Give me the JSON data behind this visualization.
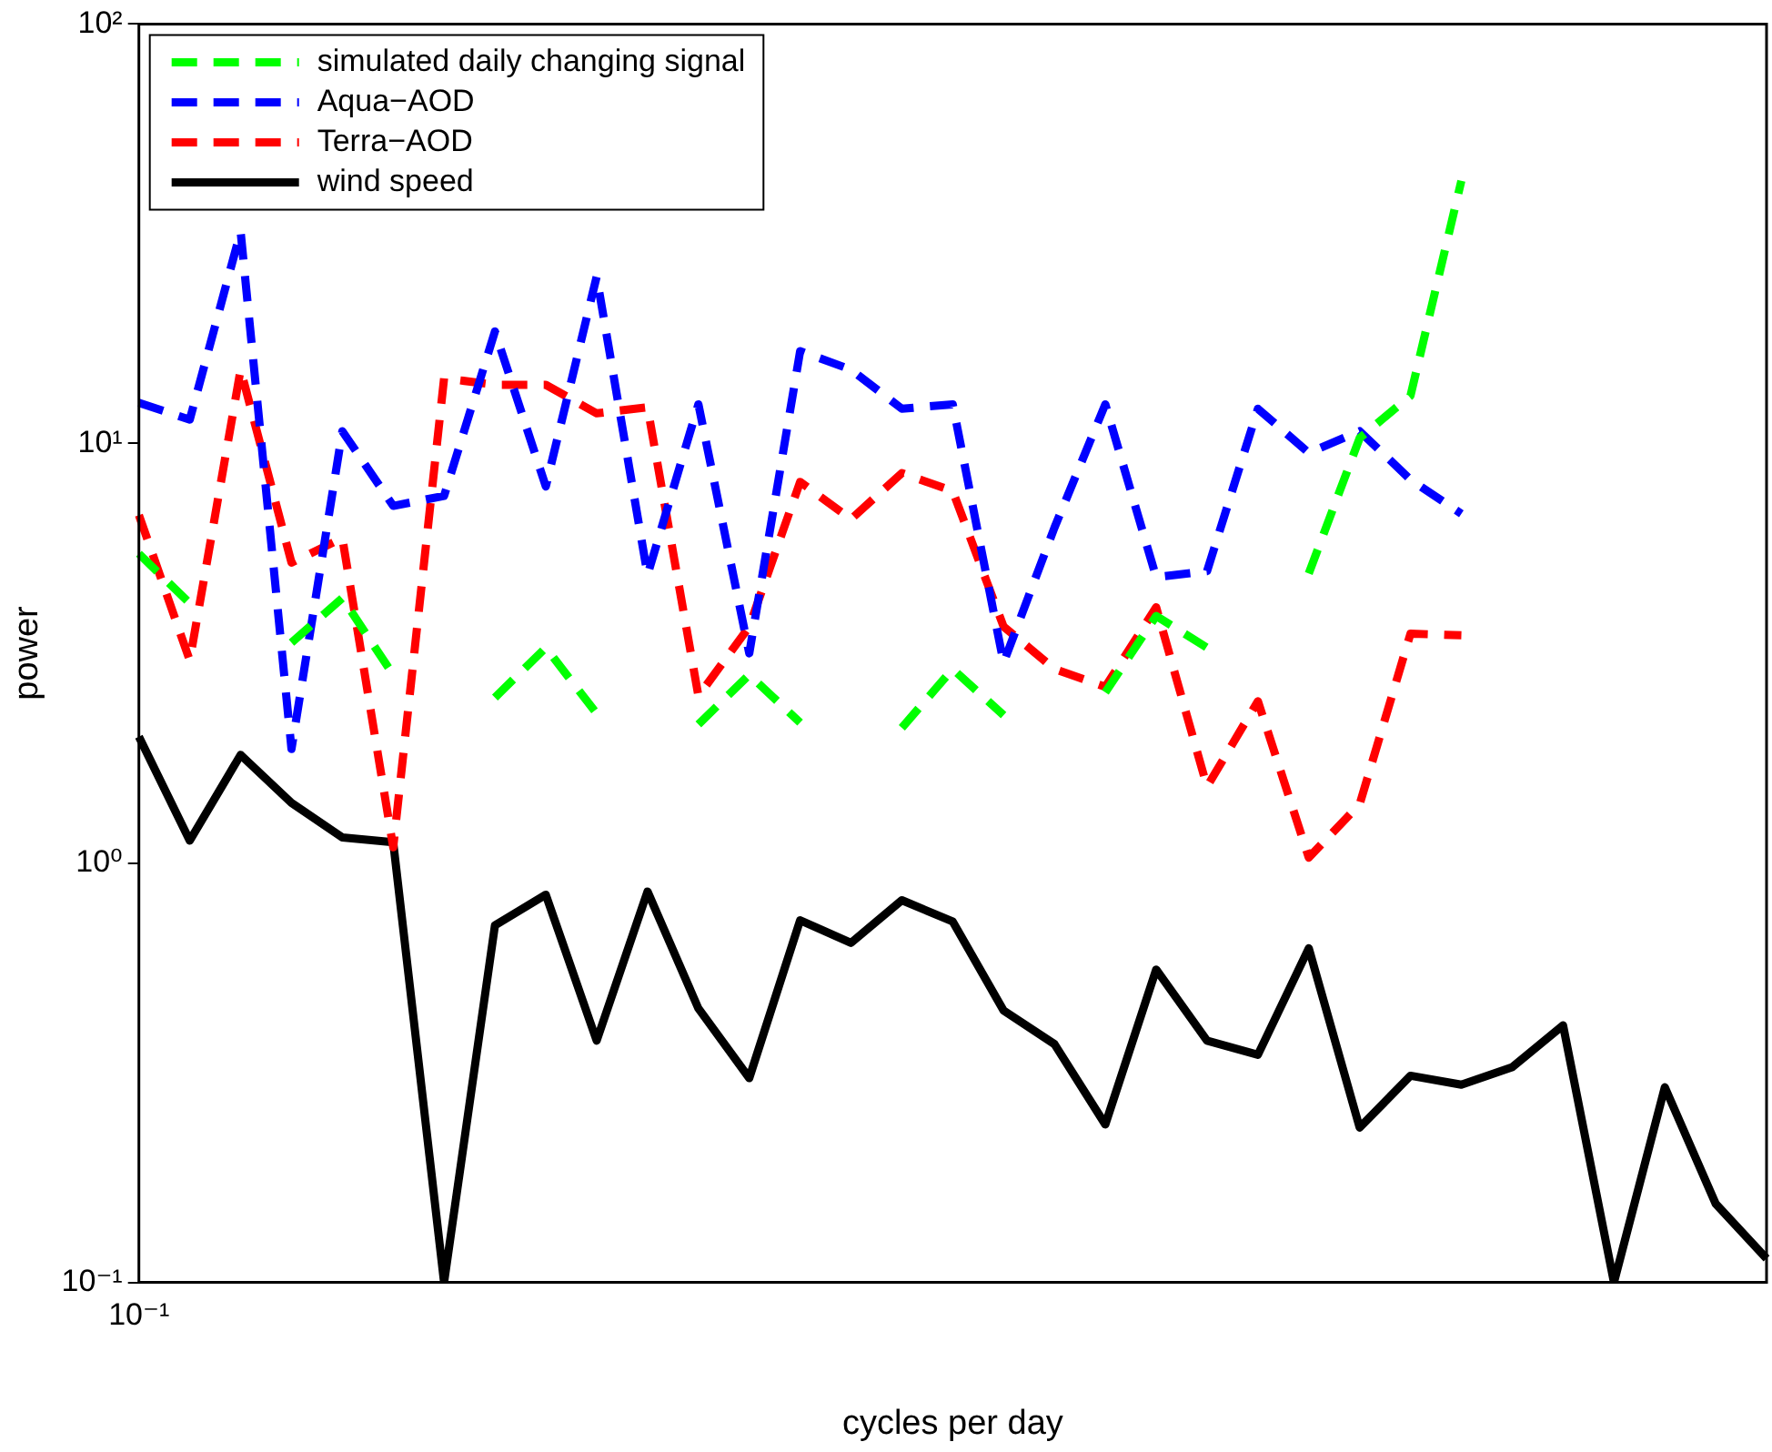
{
  "chart_data": {
    "type": "line",
    "xlabel": "cycles per day",
    "ylabel": "power",
    "log": "y",
    "grid": false,
    "legend": "top left",
    "marker": "none",
    "annotations": [
      "10⁻¹"
    ],
    "categories": [
      null,
      null,
      null,
      null,
      null,
      null,
      null,
      null,
      null,
      null,
      null,
      null,
      null,
      null,
      null,
      null,
      null,
      null,
      null,
      null,
      null,
      null,
      null,
      null,
      null,
      null,
      null,
      null,
      null,
      null,
      null,
      null,
      null
    ],
    "ylim": [
      0.1,
      100
    ],
    "yticks": [
      {
        "value": 0.1,
        "label": "10⁻¹"
      },
      {
        "value": 1,
        "label": "10⁰"
      },
      {
        "value": 10,
        "label": "10¹"
      },
      {
        "value": 100,
        "label": "10²"
      }
    ],
    "series": [
      {
        "name": "simulated daily changing signal",
        "color": "#00ff00",
        "line_style": "dashed",
        "values": [
          5.46,
          4.16,
          null,
          3.35,
          4.28,
          2.81,
          null,
          2.48,
          3.26,
          2.27,
          null,
          2.14,
          2.81,
          2.16,
          null,
          2.1,
          2.9,
          2.25,
          null,
          2.55,
          3.88,
          3.26,
          null,
          4.9,
          10.3,
          13.0,
          42.3,
          null,
          null,
          null,
          null,
          null,
          null
        ]
      },
      {
        "name": "Aqua−AOD",
        "color": "#0000ff",
        "line_style": "dashed",
        "values": [
          12.5,
          11.4,
          32,
          1.87,
          10.7,
          7.1,
          7.5,
          18.5,
          7.9,
          25,
          4.86,
          12.4,
          3.16,
          16.6,
          15,
          12.1,
          12.4,
          3.0,
          6.3,
          12.4,
          4.8,
          4.96,
          12.1,
          9.5,
          10.7,
          8.2,
          6.8,
          null,
          null,
          null,
          null,
          null,
          null
        ]
      },
      {
        "name": "Terra−AOD",
        "color": "#ff0000",
        "line_style": "dashed",
        "values": [
          6.75,
          3.04,
          15,
          5.2,
          5.95,
          1.09,
          14.3,
          13.8,
          13.8,
          11.8,
          12.2,
          2.5,
          3.66,
          8.1,
          6.6,
          8.5,
          7.7,
          3.66,
          2.9,
          2.63,
          4.07,
          1.52,
          2.43,
          1.03,
          1.38,
          3.52,
          3.49,
          null,
          null,
          null,
          null,
          null,
          null
        ]
      },
      {
        "name": "wind speed",
        "color": "#000000",
        "line_style": "solid",
        "values": [
          2.0,
          1.13,
          1.81,
          1.39,
          1.15,
          1.12,
          0.1,
          0.71,
          0.84,
          0.377,
          0.855,
          0.45,
          0.307,
          0.73,
          0.645,
          0.815,
          0.725,
          0.445,
          0.37,
          0.238,
          0.557,
          0.377,
          0.349,
          0.626,
          0.234,
          0.311,
          0.296,
          0.326,
          0.41,
          0.1,
          0.292,
          0.154,
          0.114
        ]
      }
    ]
  }
}
